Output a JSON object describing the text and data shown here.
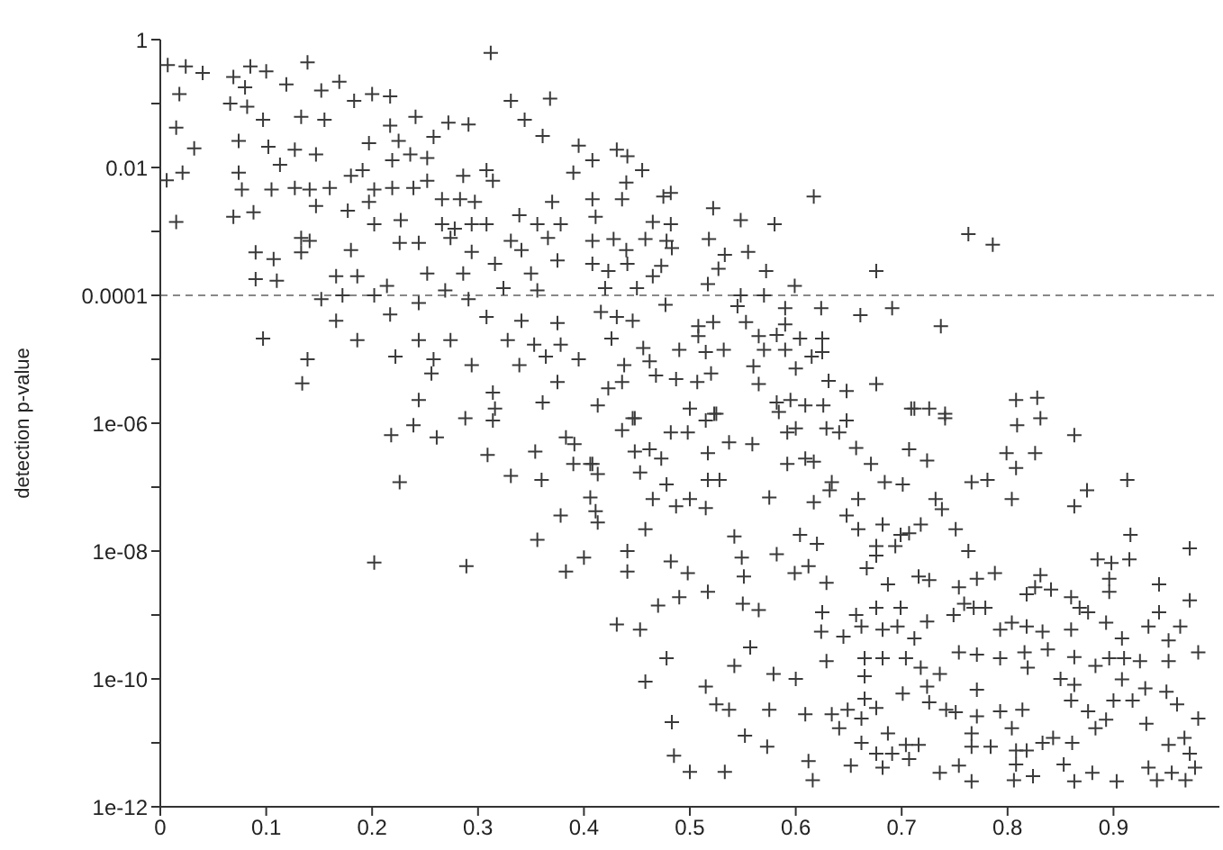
{
  "chart_data": {
    "type": "scatter",
    "ylabel": "detection p-value",
    "color": "#3a3a3a",
    "marker": "cross",
    "log": "y",
    "xlim": [
      0,
      1
    ],
    "xticks": [
      0,
      0.1,
      0.2,
      0.3,
      0.4,
      0.5,
      0.6,
      0.7,
      0.8,
      0.9
    ],
    "ylim": [
      1e-12,
      1
    ],
    "yticks": [
      1,
      {
        "value": 0.1,
        "label": null
      },
      0.01,
      {
        "value": 0.001,
        "label": null
      },
      0.0001,
      {
        "value": 1e-05,
        "label": null
      },
      {
        "value": 1e-06,
        "label": "1e-06"
      },
      {
        "value": 1e-07,
        "label": null
      },
      {
        "value": 1e-08,
        "label": "1e-08"
      },
      {
        "value": 1e-09,
        "label": null
      },
      {
        "value": 1e-10,
        "label": "1e-10"
      },
      {
        "value": 1e-11,
        "label": null
      },
      {
        "value": 1e-12,
        "label": "1e-12"
      }
    ],
    "ref_lines": [
      {
        "axis": "y",
        "value": 0.0001,
        "line_style": "dashed",
        "color": "#888888"
      }
    ],
    "x": [
      0.007,
      0.024,
      0.04,
      0.018,
      0.015,
      0.006,
      0.015,
      0.032,
      0.021,
      0.069,
      0.085,
      0.1,
      0.066,
      0.082,
      0.08,
      0.097,
      0.074,
      0.102,
      0.074,
      0.077,
      0.069,
      0.088,
      0.105,
      0.09,
      0.107,
      0.09,
      0.11,
      0.097,
      0.119,
      0.139,
      0.152,
      0.169,
      0.133,
      0.155,
      0.113,
      0.127,
      0.147,
      0.127,
      0.141,
      0.133,
      0.133,
      0.141,
      0.147,
      0.16,
      0.166,
      0.186,
      0.152,
      0.172,
      0.166,
      0.186,
      0.139,
      0.134,
      0.183,
      0.2,
      0.217,
      0.241,
      0.272,
      0.291,
      0.312,
      0.331,
      0.344,
      0.368,
      0.361,
      0.217,
      0.197,
      0.225,
      0.191,
      0.219,
      0.236,
      0.252,
      0.258,
      0.18,
      0.202,
      0.197,
      0.219,
      0.252,
      0.266,
      0.283,
      0.297,
      0.314,
      0.308,
      0.286,
      0.239,
      0.177,
      0.202,
      0.227,
      0.266,
      0.278,
      0.294,
      0.308,
      0.274,
      0.18,
      0.226,
      0.244,
      0.294,
      0.331,
      0.341,
      0.366,
      0.37,
      0.339,
      0.356,
      0.378,
      0.39,
      0.395,
      0.408,
      0.408,
      0.411,
      0.408,
      0.375,
      0.35,
      0.316,
      0.286,
      0.252,
      0.214,
      0.202,
      0.244,
      0.269,
      0.291,
      0.324,
      0.356,
      0.217,
      0.308,
      0.341,
      0.353,
      0.364,
      0.378,
      0.395,
      0.375,
      0.222,
      0.244,
      0.258,
      0.274,
      0.294,
      0.256,
      0.328,
      0.339,
      0.375,
      0.244,
      0.314,
      0.316,
      0.361,
      0.218,
      0.239,
      0.261,
      0.226,
      0.202,
      0.288,
      0.314,
      0.309,
      0.289,
      0.331,
      0.354,
      0.36,
      0.383,
      0.391,
      0.39,
      0.378,
      0.356,
      0.383,
      0.4,
      0.406,
      0.413,
      0.406,
      0.411,
      0.413,
      0.431,
      0.441,
      0.455,
      0.44,
      0.436,
      0.475,
      0.482,
      0.428,
      0.44,
      0.458,
      0.465,
      0.482,
      0.478,
      0.483,
      0.518,
      0.522,
      0.548,
      0.555,
      0.58,
      0.533,
      0.617,
      0.408,
      0.423,
      0.441,
      0.473,
      0.465,
      0.45,
      0.42,
      0.527,
      0.517,
      0.572,
      0.599,
      0.676,
      0.763,
      0.786,
      0.548,
      0.57,
      0.416,
      0.431,
      0.446,
      0.477,
      0.545,
      0.59,
      0.624,
      0.661,
      0.691,
      0.737,
      0.426,
      0.456,
      0.462,
      0.49,
      0.508,
      0.522,
      0.508,
      0.515,
      0.532,
      0.52,
      0.553,
      0.565,
      0.582,
      0.59,
      0.57,
      0.59,
      0.604,
      0.625,
      0.625,
      0.615,
      0.6,
      0.56,
      0.487,
      0.468,
      0.438,
      0.436,
      0.423,
      0.413,
      0.507,
      0.5,
      0.525,
      0.565,
      0.582,
      0.595,
      0.609,
      0.626,
      0.631,
      0.648,
      0.676,
      0.709,
      0.726,
      0.741,
      0.808,
      0.828,
      0.446,
      0.436,
      0.448,
      0.482,
      0.515,
      0.523,
      0.498,
      0.408,
      0.453,
      0.448,
      0.462,
      0.473,
      0.478,
      0.465,
      0.487,
      0.5,
      0.515,
      0.517,
      0.528,
      0.517,
      0.537,
      0.559,
      0.458,
      0.441,
      0.441,
      0.482,
      0.498,
      0.47,
      0.49,
      0.517,
      0.431,
      0.453,
      0.478,
      0.458,
      0.483,
      0.485,
      0.5,
      0.533,
      0.515,
      0.525,
      0.537,
      0.542,
      0.549,
      0.551,
      0.55,
      0.565,
      0.542,
      0.557,
      0.552,
      0.573,
      0.575,
      0.579,
      0.582,
      0.575,
      0.592,
      0.592,
      0.599,
      0.612,
      0.604,
      0.62,
      0.6,
      0.609,
      0.612,
      0.616,
      0.609,
      0.617,
      0.617,
      0.629,
      0.625,
      0.624,
      0.629,
      0.634,
      0.641,
      0.649,
      0.652,
      0.662,
      0.665,
      0.665,
      0.662,
      0.676,
      0.676,
      0.682,
      0.687,
      0.691,
      0.707,
      0.716,
      0.704,
      0.701,
      0.726,
      0.724,
      0.736,
      0.742,
      0.751,
      0.771,
      0.766,
      0.766,
      0.784,
      0.736,
      0.754,
      0.766,
      0.771,
      0.793,
      0.814,
      0.804,
      0.808,
      0.818,
      0.808,
      0.806,
      0.824,
      0.833,
      0.843,
      0.853,
      0.863,
      0.88,
      0.861,
      0.86,
      0.863,
      0.876,
      0.883,
      0.893,
      0.9,
      0.908,
      0.903,
      0.931,
      0.918,
      0.93,
      0.95,
      0.96,
      0.98,
      0.952,
      0.967,
      0.972,
      0.933,
      0.941,
      0.955,
      0.968,
      0.977,
      0.816,
      0.819,
      0.833,
      0.838,
      0.85,
      0.863,
      0.883,
      0.896,
      0.91,
      0.925,
      0.952,
      0.98,
      0.908,
      0.893,
      0.86,
      0.818,
      0.804,
      0.793,
      0.793,
      0.771,
      0.754,
      0.768,
      0.759,
      0.779,
      0.818,
      0.826,
      0.831,
      0.841,
      0.86,
      0.868,
      0.876,
      0.896,
      0.896,
      0.885,
      0.898,
      0.915,
      0.916,
      0.913,
      0.943,
      0.943,
      0.963,
      0.972,
      0.972,
      0.952,
      0.933,
      0.875,
      0.863,
      0.863,
      0.831,
      0.809,
      0.799,
      0.826,
      0.804,
      0.808,
      0.766,
      0.781,
      0.732,
      0.738,
      0.718,
      0.751,
      0.763,
      0.771,
      0.788,
      0.754,
      0.749,
      0.726,
      0.716,
      0.687,
      0.676,
      0.699,
      0.682,
      0.696,
      0.712,
      0.724,
      0.704,
      0.718,
      0.682,
      0.665,
      0.645,
      0.662,
      0.657,
      0.667,
      0.676,
      0.676,
      0.694,
      0.699,
      0.707,
      0.682,
      0.659,
      0.648,
      0.659,
      0.632,
      0.634,
      0.671,
      0.684,
      0.707,
      0.724,
      0.701,
      0.641,
      0.648,
      0.657,
      0.712,
      0.741,
      0.584,
      0.6,
      0.629
    ],
    "values": [
      0.4,
      0.38,
      0.3,
      0.14,
      0.042,
      0.0063,
      0.0014,
      0.02,
      0.0083,
      0.26,
      0.38,
      0.32,
      0.1,
      0.089,
      0.18,
      0.056,
      0.026,
      0.021,
      0.0083,
      0.0045,
      0.0017,
      0.002,
      0.0045,
      0.00047,
      0.00037,
      0.00018,
      0.00017,
      2.1e-05,
      0.2,
      0.44,
      0.16,
      0.22,
      0.062,
      0.056,
      0.011,
      0.019,
      0.016,
      0.0048,
      0.0045,
      0.00079,
      0.00047,
      0.00071,
      0.0025,
      0.0048,
      0.0002,
      0.0002,
      8.7e-05,
      0.0001,
      4e-05,
      2e-05,
      1e-05,
      4.2e-06,
      0.11,
      0.14,
      0.13,
      0.062,
      0.05,
      0.047,
      0.62,
      0.11,
      0.056,
      0.12,
      0.031,
      0.045,
      0.024,
      0.026,
      0.0091,
      0.013,
      0.016,
      0.014,
      0.03,
      0.0074,
      0.0045,
      0.0029,
      0.0048,
      0.0062,
      0.0032,
      0.0032,
      0.0029,
      0.0062,
      0.0091,
      0.0074,
      0.0048,
      0.0021,
      0.0013,
      0.0015,
      0.0013,
      0.0011,
      0.0013,
      0.0013,
      0.00079,
      0.00051,
      0.00066,
      0.00066,
      0.00048,
      0.00071,
      0.00051,
      0.00079,
      0.0029,
      0.0018,
      0.0013,
      0.0013,
      0.0083,
      0.022,
      0.013,
      0.0032,
      0.0017,
      0.00071,
      0.00035,
      0.00022,
      0.00031,
      0.00022,
      0.00022,
      0.00014,
      0.0001,
      7.6e-05,
      0.00012,
      8.7e-05,
      0.00013,
      0.00012,
      5e-05,
      4.6e-05,
      4e-05,
      1.7e-05,
      1.1e-05,
      1.7e-05,
      1e-05,
      3.7e-05,
      1.1e-05,
      2e-05,
      1e-05,
      2e-05,
      8.1e-06,
      6e-06,
      2e-05,
      8.1e-06,
      4.4e-06,
      2.3e-06,
      3e-06,
      1.7e-06,
      2.1e-06,
      6.5e-07,
      9.3e-07,
      6e-07,
      1.2e-07,
      6.6e-09,
      1.2e-06,
      1.1e-06,
      3.2e-07,
      5.8e-09,
      1.5e-07,
      3.6e-07,
      1.3e-07,
      6e-07,
      4.7e-07,
      2.3e-07,
      3.6e-08,
      1.5e-08,
      4.8e-09,
      7.9e-09,
      2.3e-07,
      1.6e-07,
      6.9e-08,
      4.2e-08,
      2.8e-08,
      0.019,
      0.015,
      0.0091,
      0.0058,
      0.0032,
      0.0035,
      0.004,
      0.00076,
      0.00051,
      0.00076,
      0.0014,
      0.0013,
      0.00071,
      0.00055,
      0.00076,
      0.0023,
      0.0015,
      0.00048,
      0.0013,
      0.00043,
      0.0035,
      0.00031,
      0.00024,
      0.00031,
      0.00029,
      0.0002,
      0.00013,
      0.00013,
      0.00026,
      0.00015,
      0.00024,
      0.00014,
      0.00024,
      0.00091,
      0.00062,
      0.0001,
      0.0001,
      5.5e-05,
      4.6e-05,
      4e-05,
      7.1e-05,
      6.8e-05,
      6.3e-05,
      6.3e-05,
      4.9e-05,
      6.3e-05,
      3.3e-05,
      2.1e-05,
      1.5e-05,
      9.3e-06,
      1.4e-05,
      3.3e-05,
      3.8e-05,
      2.3e-05,
      1.3e-05,
      1.4e-05,
      6e-06,
      3.8e-05,
      2.3e-05,
      2.4e-05,
      3.5e-05,
      1.4e-05,
      1.4e-05,
      2.1e-05,
      2.1e-05,
      1.3e-05,
      1.1e-05,
      7.2e-06,
      7.8e-06,
      4.9e-06,
      5.6e-06,
      8.1e-06,
      4.4e-06,
      3.5e-06,
      1.9e-06,
      4.4e-06,
      1.7e-06,
      1.4e-06,
      4.1e-06,
      2.1e-06,
      2.3e-06,
      1.9e-06,
      1.9e-06,
      4.6e-06,
      3.2e-06,
      4.1e-06,
      1.7e-06,
      1.7e-06,
      1.2e-06,
      2.3e-06,
      2.5e-06,
      1.2e-06,
      7.8e-07,
      1.2e-06,
      7.2e-07,
      1.1e-06,
      1.4e-06,
      7.2e-07,
      2.3e-07,
      1.7e-07,
      3.6e-07,
      3.9e-07,
      2.8e-07,
      1.1e-07,
      6.5e-08,
      5e-08,
      6.5e-08,
      4.7e-08,
      1.3e-07,
      1.3e-07,
      3.4e-07,
      5e-07,
      4.7e-07,
      2.2e-08,
      1e-08,
      4.8e-09,
      6.9e-09,
      4.5e-09,
      1.4e-09,
      1.9e-09,
      2.3e-09,
      7.1e-10,
      5.9e-10,
      2.1e-10,
      9.1e-11,
      2.1e-11,
      6.3e-12,
      3.5e-12,
      3.5e-12,
      7.6e-11,
      4e-11,
      3.3e-11,
      1.7e-08,
      7.9e-09,
      4e-09,
      1.5e-09,
      1.2e-09,
      1.6e-10,
      3.1e-10,
      1.3e-11,
      8.7e-12,
      3.3e-11,
      1.2e-10,
      8.9e-09,
      6.9e-08,
      2.3e-07,
      7.2e-07,
      4.5e-09,
      5.8e-09,
      1.8e-08,
      1.3e-08,
      1e-10,
      2.8e-11,
      5.2e-12,
      2.6e-12,
      2.8e-07,
      2.5e-07,
      5.8e-08,
      3.2e-09,
      1.1e-09,
      5.5e-10,
      1.9e-10,
      2.8e-11,
      1.7e-11,
      3.3e-11,
      4.4e-12,
      2.4e-11,
      1.1e-10,
      4.9e-11,
      1e-11,
      3.5e-11,
      6.8e-12,
      4.1e-12,
      1.4e-11,
      6.8e-12,
      5.6e-12,
      9.3e-12,
      9.3e-12,
      5.9e-11,
      4.3e-11,
      7.6e-11,
      1.2e-10,
      3.3e-11,
      3e-11,
      2.6e-11,
      1.4e-11,
      8.7e-12,
      8.7e-12,
      3.4e-12,
      4.4e-12,
      2.5e-12,
      6.8e-11,
      3.1e-11,
      3.3e-11,
      1.7e-11,
      7.6e-12,
      7.6e-12,
      4.6e-12,
      2.6e-12,
      3e-12,
      1e-11,
      1.2e-11,
      4.6e-12,
      2.5e-12,
      3.4e-12,
      1e-11,
      4.6e-11,
      8.1e-11,
      3.1e-11,
      1.7e-11,
      2.3e-11,
      4.6e-11,
      9.8e-11,
      2.5e-12,
      2e-11,
      4.6e-11,
      7.1e-11,
      6.3e-11,
      4e-11,
      2.4e-11,
      9.3e-12,
      1.2e-11,
      6.8e-12,
      4.1e-12,
      2.6e-12,
      3.4e-12,
      2.6e-12,
      4.1e-12,
      2.6e-10,
      1.5e-10,
      5.5e-10,
      2.9e-10,
      1e-10,
      2.2e-10,
      1.6e-10,
      2.1e-10,
      2.1e-10,
      1.9e-10,
      1.9e-10,
      2.6e-10,
      4.3e-10,
      7.6e-10,
      5.9e-10,
      6.6e-10,
      7.6e-10,
      5.9e-10,
      2.1e-10,
      2.4e-10,
      2.6e-10,
      1.3e-09,
      1.5e-09,
      1.3e-09,
      2.1e-09,
      2.7e-09,
      4.2e-09,
      2.5e-09,
      1.9e-09,
      1.3e-09,
      1.1e-09,
      2.3e-09,
      3.7e-09,
      7.4e-09,
      6.5e-09,
      7.4e-09,
      1.8e-08,
      1.3e-07,
      3e-09,
      1.1e-09,
      6.6e-10,
      1.7e-09,
      1.1e-08,
      4e-10,
      6.6e-10,
      8.9e-08,
      5e-08,
      6.5e-07,
      1.2e-06,
      9.3e-07,
      3.4e-07,
      3.4e-07,
      6.5e-08,
      2e-07,
      1.2e-07,
      1.3e-07,
      6.5e-08,
      4.5e-08,
      2.6e-08,
      2.2e-08,
      1e-08,
      3.7e-09,
      4.5e-09,
      2.7e-09,
      1e-09,
      3.5e-09,
      4e-09,
      3e-09,
      1.3e-09,
      1.3e-09,
      5.9e-10,
      6.6e-10,
      4.3e-10,
      7.9e-10,
      2.1e-10,
      1.5e-10,
      2.1e-10,
      2.1e-10,
      4.6e-10,
      6.6e-10,
      1e-09,
      5.4e-09,
      8.5e-09,
      1.2e-08,
      1.2e-08,
      1.8e-08,
      1.9e-08,
      2.6e-08,
      2.2e-08,
      3.6e-08,
      6.5e-08,
      8.9e-08,
      1.2e-07,
      2.3e-07,
      1.2e-07,
      3.9e-07,
      2.6e-07,
      1.1e-07,
      7.2e-07,
      1.1e-06,
      4.1e-07,
      1.7e-06,
      1.4e-06,
      1.5e-06,
      8.3e-07,
      8.3e-07
    ]
  }
}
